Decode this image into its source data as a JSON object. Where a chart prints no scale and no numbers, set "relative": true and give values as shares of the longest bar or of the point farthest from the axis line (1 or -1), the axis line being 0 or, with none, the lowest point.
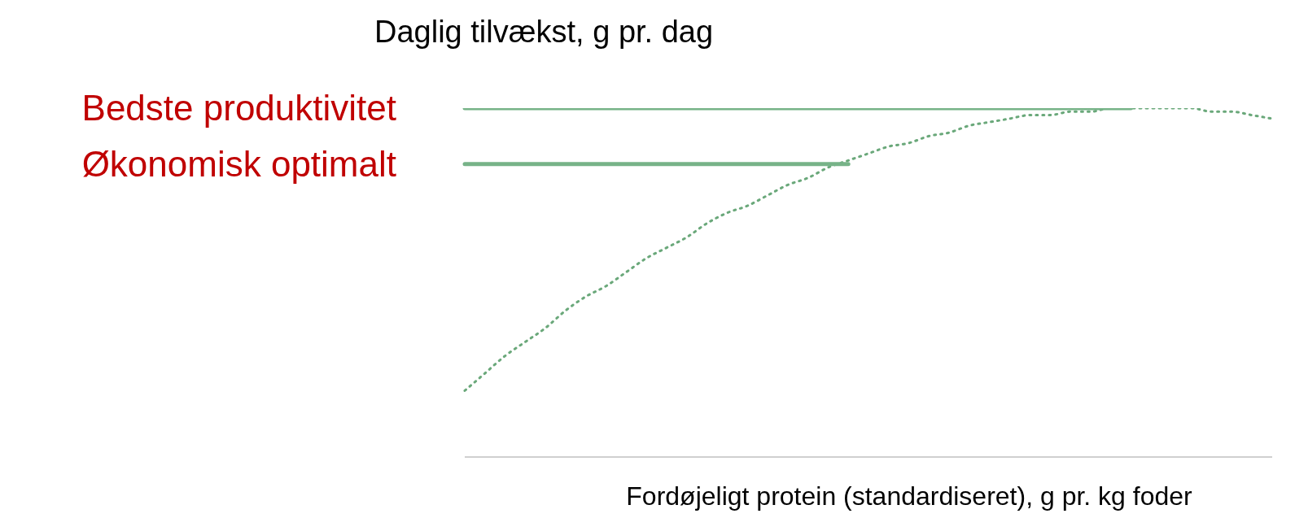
{
  "chart_data": {
    "type": "line",
    "relative": true,
    "ylabel": "Daglig tilvækst, g pr. dag",
    "xlabel": "Fordøjeligt protein (standardiseret), g pr. kg foder",
    "categories": [
      null,
      null,
      null,
      null,
      null,
      null,
      null,
      null,
      null,
      null,
      null,
      null,
      null,
      null,
      null,
      null,
      null,
      null,
      null,
      null,
      null,
      null,
      null,
      null,
      null,
      null,
      null,
      null,
      null,
      null,
      null,
      null,
      null,
      null,
      null,
      null,
      null,
      null,
      null,
      null,
      null
    ],
    "series": [
      {
        "color": "#6aa87a",
        "line_style": "dotted",
        "values": [
          0.19,
          0.24,
          0.29,
          0.33,
          0.37,
          0.42,
          0.46,
          0.49,
          0.53,
          0.57,
          0.6,
          0.63,
          0.67,
          0.7,
          0.72,
          0.75,
          0.78,
          0.8,
          0.83,
          0.85,
          0.87,
          0.89,
          0.9,
          0.92,
          0.93,
          0.95,
          0.96,
          0.97,
          0.98,
          0.98,
          0.99,
          0.99,
          1,
          1,
          1,
          1,
          1,
          0.99,
          0.99,
          0.98,
          0.97
        ]
      },
      {
        "name": "Bedste produktivitet",
        "color": "#77b388",
        "line_style": "solid",
        "values": [
          1,
          1,
          1,
          1,
          1,
          1,
          1,
          1,
          1,
          1,
          1,
          1,
          1,
          1,
          1,
          1,
          1,
          1,
          1,
          1,
          1,
          1,
          1,
          1,
          1,
          1,
          1,
          1,
          1,
          1,
          1,
          1,
          1,
          1,
          null,
          null,
          null,
          null,
          null,
          null,
          null
        ]
      },
      {
        "name": "Økonomisk optimalt",
        "color": "#77b388",
        "line_style": "solid",
        "values": [
          0.84,
          0.84,
          0.84,
          0.84,
          0.84,
          0.84,
          0.84,
          0.84,
          0.84,
          0.84,
          0.84,
          0.84,
          0.84,
          0.84,
          0.84,
          0.84,
          0.84,
          0.84,
          0.84,
          0.84,
          null,
          null,
          null,
          null,
          null,
          null,
          null,
          null,
          null,
          null,
          null,
          null,
          null,
          null,
          null,
          null,
          null,
          null,
          null,
          null,
          null
        ]
      }
    ],
    "legend": false,
    "grid": false,
    "marker": "none"
  }
}
